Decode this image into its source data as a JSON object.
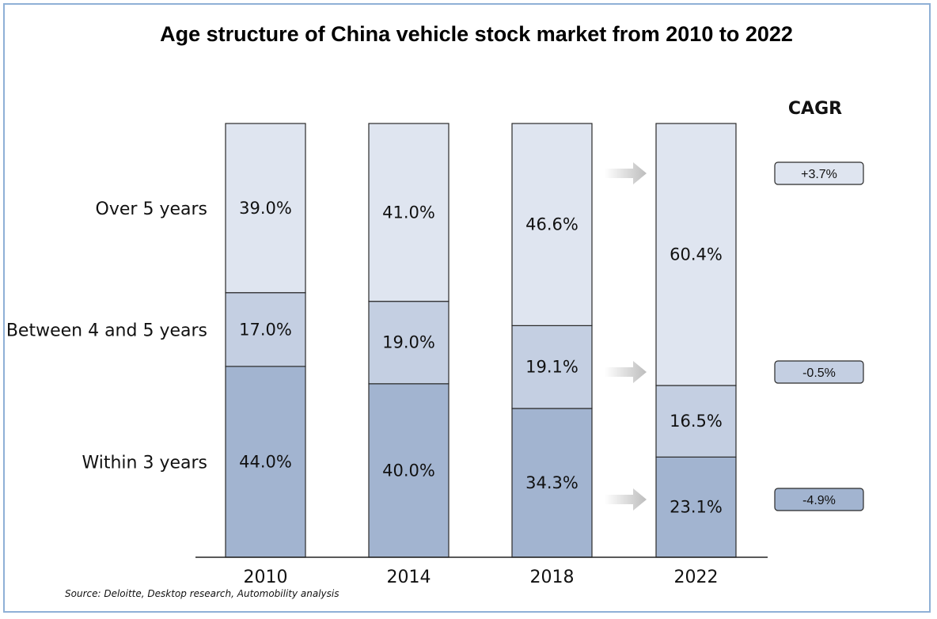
{
  "chart_data": {
    "type": "bar",
    "stacked": true,
    "title": "Age structure of China vehicle stock market from 2010 to 2022",
    "categories": [
      "2010",
      "2014",
      "2018",
      "2022"
    ],
    "ylim": [
      0,
      100
    ],
    "series": [
      {
        "name": "Within 3 years",
        "values": [
          44.0,
          40.0,
          34.3,
          23.1
        ],
        "labels": [
          "44.0%",
          "40.0%",
          "34.3%",
          "23.1%"
        ],
        "color": "#a2b4d0"
      },
      {
        "name": "Between 4 and 5 years",
        "values": [
          17.0,
          19.0,
          19.1,
          16.5
        ],
        "labels": [
          "17.0%",
          "19.0%",
          "19.1%",
          "16.5%"
        ],
        "color": "#c4cfe2"
      },
      {
        "name": "Over 5 years",
        "values": [
          39.0,
          41.0,
          46.6,
          60.4
        ],
        "labels": [
          "39.0%",
          "41.0%",
          "46.6%",
          "60.4%"
        ],
        "color": "#dfe5f0"
      }
    ],
    "cagr": {
      "title": "CAGR",
      "items": [
        {
          "series": "Over 5 years",
          "label": "+3.7%",
          "color": "#dfe5f0"
        },
        {
          "series": "Between 4 and 5 years",
          "label": "-0.5%",
          "color": "#c4cfe2"
        },
        {
          "series": "Within 3 years",
          "label": "-4.9%",
          "color": "#a2b4d0"
        }
      ]
    },
    "source": "Source: Deloitte, Desktop research, Automobility analysis",
    "grid": false,
    "legend": "row labels at left"
  }
}
